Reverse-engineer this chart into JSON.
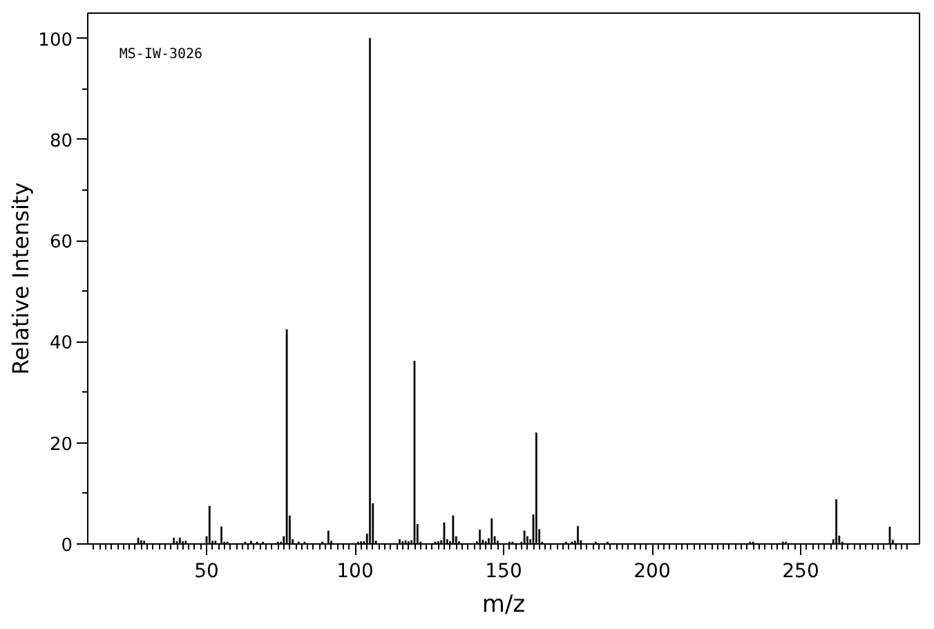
{
  "chart_data": {
    "type": "bar",
    "color": "#000000",
    "xlabel": "m/z",
    "ylabel": "Relative Intensity",
    "annotations": [
      "MS-IW-3026"
    ],
    "x": [
      27,
      28,
      29,
      39,
      40,
      41,
      42,
      43,
      50,
      51,
      52,
      53,
      55,
      56,
      57,
      63,
      65,
      67,
      69,
      74,
      75,
      76,
      77,
      78,
      79,
      81,
      83,
      89,
      91,
      92,
      101,
      102,
      103,
      104,
      105,
      106,
      107,
      115,
      116,
      117,
      118,
      119,
      120,
      121,
      122,
      127,
      128,
      129,
      130,
      131,
      132,
      133,
      134,
      135,
      141,
      142,
      143,
      144,
      145,
      146,
      147,
      148,
      152,
      153,
      156,
      157,
      158,
      159,
      160,
      161,
      162,
      163,
      171,
      173,
      174,
      175,
      176,
      181,
      185,
      233,
      234,
      244,
      245,
      261,
      262,
      263,
      264,
      280,
      281
    ],
    "values": [
      1.2,
      0.7,
      0.6,
      1.2,
      0.5,
      1.2,
      0.5,
      0.6,
      1.5,
      7.5,
      0.6,
      0.6,
      3.4,
      0.4,
      0.4,
      0.4,
      0.6,
      0.4,
      0.4,
      0.4,
      0.4,
      1.5,
      42.4,
      5.6,
      0.9,
      0.4,
      0.4,
      0.4,
      2.6,
      0.6,
      0.4,
      0.5,
      0.5,
      2.0,
      100,
      8.0,
      0.6,
      0.9,
      0.5,
      0.7,
      0.5,
      0.7,
      36.2,
      3.9,
      0.4,
      0.4,
      0.5,
      0.7,
      4.2,
      0.9,
      0.5,
      5.6,
      1.5,
      0.5,
      0.5,
      2.8,
      0.8,
      0.5,
      1.1,
      5.0,
      1.5,
      0.6,
      0.4,
      0.4,
      0.4,
      2.6,
      1.5,
      0.9,
      5.8,
      22.0,
      2.9,
      0.4,
      0.4,
      0.4,
      0.6,
      3.5,
      0.7,
      0.4,
      0.4,
      0.4,
      0.4,
      0.4,
      0.4,
      0.9,
      8.8,
      1.6,
      0.4,
      3.4,
      0.8
    ],
    "xlim": [
      10,
      290
    ],
    "ylim": [
      0,
      105
    ],
    "yticks": [
      0,
      {
        "value": 10,
        "label": null
      },
      20,
      {
        "value": 30,
        "label": null
      },
      40,
      {
        "value": 50,
        "label": null
      },
      60,
      {
        "value": 70,
        "label": null
      },
      80,
      {
        "value": 90,
        "label": null
      },
      100
    ],
    "xticks": [
      {
        "value": 12,
        "label": null
      },
      {
        "value": 14,
        "label": null
      },
      {
        "value": 16,
        "label": null
      },
      {
        "value": 18,
        "label": null
      },
      {
        "value": 20,
        "label": null
      },
      {
        "value": 22,
        "label": null
      },
      {
        "value": 24,
        "label": null
      },
      {
        "value": 26,
        "label": null
      },
      {
        "value": 28,
        "label": null
      },
      {
        "value": 30,
        "label": null
      },
      {
        "value": 32,
        "label": null
      },
      {
        "value": 34,
        "label": null
      },
      {
        "value": 36,
        "label": null
      },
      {
        "value": 38,
        "label": null
      },
      {
        "value": 40,
        "label": null
      },
      {
        "value": 42,
        "label": null
      },
      {
        "value": 44,
        "label": null
      },
      {
        "value": 46,
        "label": null
      },
      {
        "value": 48,
        "label": null
      },
      50,
      {
        "value": 52,
        "label": null
      },
      {
        "value": 54,
        "label": null
      },
      {
        "value": 56,
        "label": null
      },
      {
        "value": 58,
        "label": null
      },
      {
        "value": 60,
        "label": null
      },
      {
        "value": 62,
        "label": null
      },
      {
        "value": 64,
        "label": null
      },
      {
        "value": 66,
        "label": null
      },
      {
        "value": 68,
        "label": null
      },
      {
        "value": 70,
        "label": null
      },
      {
        "value": 72,
        "label": null
      },
      {
        "value": 74,
        "label": null
      },
      {
        "value": 76,
        "label": null
      },
      {
        "value": 78,
        "label": null
      },
      {
        "value": 80,
        "label": null
      },
      {
        "value": 82,
        "label": null
      },
      {
        "value": 84,
        "label": null
      },
      {
        "value": 86,
        "label": null
      },
      {
        "value": 88,
        "label": null
      },
      {
        "value": 90,
        "label": null
      },
      {
        "value": 92,
        "label": null
      },
      {
        "value": 94,
        "label": null
      },
      {
        "value": 96,
        "label": null
      },
      {
        "value": 98,
        "label": null
      },
      100,
      {
        "value": 102,
        "label": null
      },
      {
        "value": 104,
        "label": null
      },
      {
        "value": 106,
        "label": null
      },
      {
        "value": 108,
        "label": null
      },
      {
        "value": 110,
        "label": null
      },
      {
        "value": 112,
        "label": null
      },
      {
        "value": 114,
        "label": null
      },
      {
        "value": 116,
        "label": null
      },
      {
        "value": 118,
        "label": null
      },
      {
        "value": 120,
        "label": null
      },
      {
        "value": 122,
        "label": null
      },
      {
        "value": 124,
        "label": null
      },
      {
        "value": 126,
        "label": null
      },
      {
        "value": 128,
        "label": null
      },
      {
        "value": 130,
        "label": null
      },
      {
        "value": 132,
        "label": null
      },
      {
        "value": 134,
        "label": null
      },
      {
        "value": 136,
        "label": null
      },
      {
        "value": 138,
        "label": null
      },
      {
        "value": 140,
        "label": null
      },
      {
        "value": 142,
        "label": null
      },
      {
        "value": 144,
        "label": null
      },
      {
        "value": 146,
        "label": null
      },
      {
        "value": 148,
        "label": null
      },
      150,
      {
        "value": 152,
        "label": null
      },
      {
        "value": 154,
        "label": null
      },
      {
        "value": 156,
        "label": null
      },
      {
        "value": 158,
        "label": null
      },
      {
        "value": 160,
        "label": null
      },
      {
        "value": 162,
        "label": null
      },
      {
        "value": 164,
        "label": null
      },
      {
        "value": 166,
        "label": null
      },
      {
        "value": 168,
        "label": null
      },
      {
        "value": 170,
        "label": null
      },
      {
        "value": 172,
        "label": null
      },
      {
        "value": 174,
        "label": null
      },
      {
        "value": 176,
        "label": null
      },
      {
        "value": 178,
        "label": null
      },
      {
        "value": 180,
        "label": null
      },
      {
        "value": 182,
        "label": null
      },
      {
        "value": 184,
        "label": null
      },
      {
        "value": 186,
        "label": null
      },
      {
        "value": 188,
        "label": null
      },
      {
        "value": 190,
        "label": null
      },
      {
        "value": 192,
        "label": null
      },
      {
        "value": 194,
        "label": null
      },
      {
        "value": 196,
        "label": null
      },
      {
        "value": 198,
        "label": null
      },
      200,
      {
        "value": 202,
        "label": null
      },
      {
        "value": 204,
        "label": null
      },
      {
        "value": 206,
        "label": null
      },
      {
        "value": 208,
        "label": null
      },
      {
        "value": 210,
        "label": null
      },
      {
        "value": 212,
        "label": null
      },
      {
        "value": 214,
        "label": null
      },
      {
        "value": 216,
        "label": null
      },
      {
        "value": 218,
        "label": null
      },
      {
        "value": 220,
        "label": null
      },
      {
        "value": 222,
        "label": null
      },
      {
        "value": 224,
        "label": null
      },
      {
        "value": 226,
        "label": null
      },
      {
        "value": 228,
        "label": null
      },
      {
        "value": 230,
        "label": null
      },
      {
        "value": 232,
        "label": null
      },
      {
        "value": 234,
        "label": null
      },
      {
        "value": 236,
        "label": null
      },
      {
        "value": 238,
        "label": null
      },
      {
        "value": 240,
        "label": null
      },
      {
        "value": 242,
        "label": null
      },
      {
        "value": 244,
        "label": null
      },
      {
        "value": 246,
        "label": null
      },
      {
        "value": 248,
        "label": null
      },
      250,
      {
        "value": 252,
        "label": null
      },
      {
        "value": 254,
        "label": null
      },
      {
        "value": 256,
        "label": null
      },
      {
        "value": 258,
        "label": null
      },
      {
        "value": 260,
        "label": null
      },
      {
        "value": 262,
        "label": null
      },
      {
        "value": 264,
        "label": null
      },
      {
        "value": 266,
        "label": null
      },
      {
        "value": 268,
        "label": null
      },
      {
        "value": 270,
        "label": null
      },
      {
        "value": 272,
        "label": null
      },
      {
        "value": 274,
        "label": null
      },
      {
        "value": 276,
        "label": null
      },
      {
        "value": 278,
        "label": null
      },
      {
        "value": 280,
        "label": null
      },
      {
        "value": 282,
        "label": null
      },
      {
        "value": 284,
        "label": null
      },
      {
        "value": 286,
        "label": null
      }
    ]
  }
}
